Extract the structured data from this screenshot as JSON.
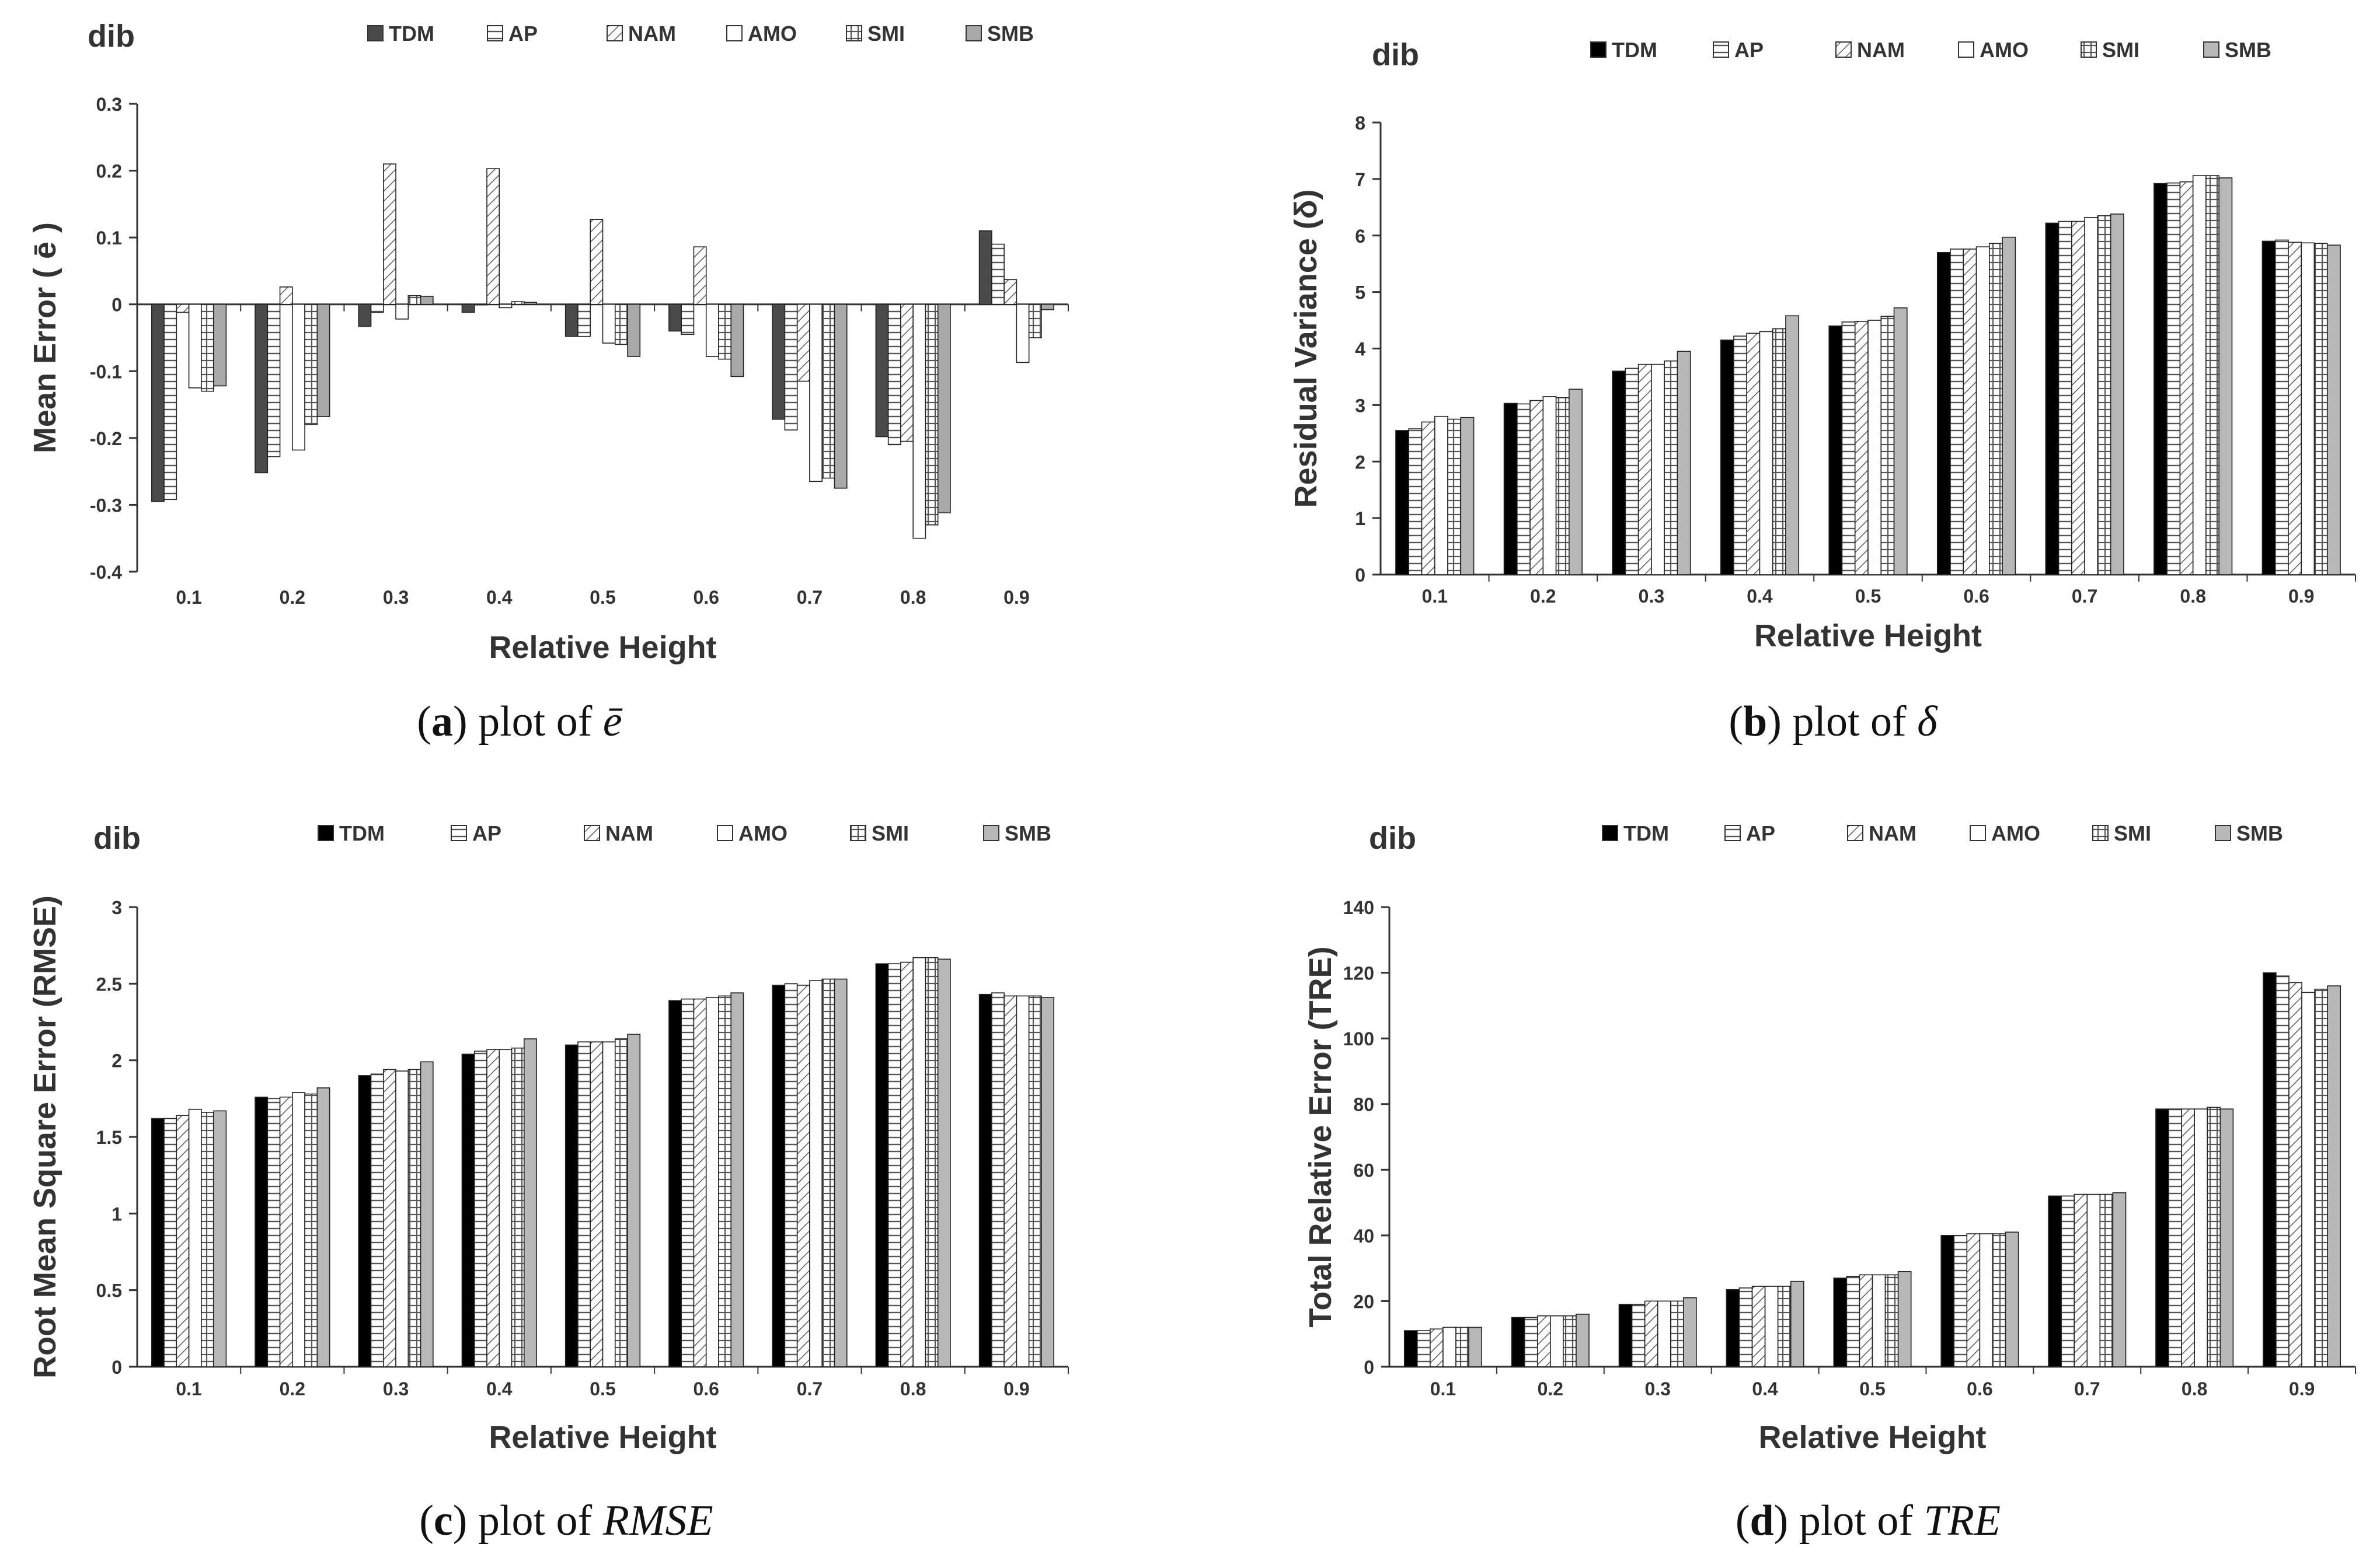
{
  "figure": {
    "panels": [
      {
        "caption_letter": "a",
        "caption_prefix": "plot of",
        "caption_symbol": "ē"
      },
      {
        "caption_letter": "b",
        "caption_prefix": "plot of",
        "caption_symbol": "δ"
      },
      {
        "caption_letter": "c",
        "caption_prefix": "plot of",
        "caption_symbol": "RMSE"
      },
      {
        "caption_letter": "d",
        "caption_prefix": "plot of",
        "caption_symbol": "TRE"
      }
    ]
  },
  "chart_data": [
    {
      "type": "bar",
      "title": "dib",
      "xlabel": "Relative Height",
      "ylabel": "Mean Error ( ē )",
      "ylim": [
        -0.4,
        0.3
      ],
      "yticks": [
        "-0.4",
        "-0.3",
        "-0.2",
        "-0.1",
        "0",
        "0.1",
        "0.2",
        "0.3"
      ],
      "categories": [
        "0.1",
        "0.2",
        "0.3",
        "0.4",
        "0.5",
        "0.6",
        "0.7",
        "0.8",
        "0.9"
      ],
      "series": [
        {
          "name": "TDM",
          "values": [
            -0.295,
            -0.252,
            -0.033,
            -0.012,
            -0.048,
            -0.04,
            -0.172,
            -0.198,
            0.11
          ]
        },
        {
          "name": "AP",
          "values": [
            -0.292,
            -0.228,
            -0.012,
            0.0,
            -0.048,
            -0.045,
            -0.188,
            -0.21,
            0.09
          ]
        },
        {
          "name": "NAM",
          "values": [
            -0.012,
            0.026,
            0.21,
            0.203,
            0.127,
            0.086,
            -0.115,
            -0.205,
            0.037
          ]
        },
        {
          "name": "AMO",
          "values": [
            -0.125,
            -0.218,
            -0.022,
            -0.005,
            -0.058,
            -0.078,
            -0.265,
            -0.35,
            -0.087
          ]
        },
        {
          "name": "SMI",
          "values": [
            -0.13,
            -0.18,
            0.013,
            0.004,
            -0.06,
            -0.082,
            -0.26,
            -0.33,
            -0.05
          ]
        },
        {
          "name": "SMB",
          "values": [
            -0.122,
            -0.168,
            0.012,
            0.003,
            -0.078,
            -0.108,
            -0.275,
            -0.312,
            -0.008
          ]
        }
      ]
    },
    {
      "type": "bar",
      "title": "dib",
      "xlabel": "Relative Height",
      "ylabel": "Residual Variance (δ)",
      "ylim": [
        0,
        8
      ],
      "yticks": [
        "0",
        "1",
        "2",
        "3",
        "4",
        "5",
        "6",
        "7",
        "8"
      ],
      "categories": [
        "0.1",
        "0.2",
        "0.3",
        "0.4",
        "0.5",
        "0.6",
        "0.7",
        "0.8",
        "0.9"
      ],
      "series": [
        {
          "name": "TDM",
          "values": [
            2.55,
            3.03,
            3.6,
            4.15,
            4.4,
            5.7,
            6.22,
            6.92,
            5.9
          ]
        },
        {
          "name": "AP",
          "values": [
            2.58,
            3.02,
            3.65,
            4.22,
            4.47,
            5.76,
            6.25,
            6.93,
            5.92
          ]
        },
        {
          "name": "NAM",
          "values": [
            2.7,
            3.08,
            3.72,
            4.27,
            4.48,
            5.76,
            6.25,
            6.95,
            5.88
          ]
        },
        {
          "name": "AMO",
          "values": [
            2.8,
            3.15,
            3.72,
            4.3,
            4.5,
            5.8,
            6.32,
            7.06,
            5.87
          ]
        },
        {
          "name": "SMI",
          "values": [
            2.75,
            3.13,
            3.78,
            4.35,
            4.57,
            5.86,
            6.35,
            7.06,
            5.86
          ]
        },
        {
          "name": "SMB",
          "values": [
            2.78,
            3.28,
            3.95,
            4.58,
            4.72,
            5.97,
            6.38,
            7.02,
            5.83
          ]
        }
      ]
    },
    {
      "type": "bar",
      "title": "dib",
      "xlabel": "Relative Height",
      "ylabel": "Root Mean Square Error (RMSE)",
      "ylim": [
        0,
        3
      ],
      "yticks": [
        "0",
        "0.5",
        "1",
        "1.5",
        "2",
        "2.5",
        "3"
      ],
      "categories": [
        "0.1",
        "0.2",
        "0.3",
        "0.4",
        "0.5",
        "0.6",
        "0.7",
        "0.8",
        "0.9"
      ],
      "series": [
        {
          "name": "TDM",
          "values": [
            1.62,
            1.76,
            1.9,
            2.04,
            2.1,
            2.39,
            2.49,
            2.63,
            2.43
          ]
        },
        {
          "name": "AP",
          "values": [
            1.62,
            1.75,
            1.91,
            2.06,
            2.12,
            2.4,
            2.5,
            2.63,
            2.44
          ]
        },
        {
          "name": "NAM",
          "values": [
            1.64,
            1.76,
            1.94,
            2.07,
            2.12,
            2.4,
            2.49,
            2.64,
            2.42
          ]
        },
        {
          "name": "AMO",
          "values": [
            1.68,
            1.79,
            1.93,
            2.07,
            2.12,
            2.41,
            2.52,
            2.67,
            2.42
          ]
        },
        {
          "name": "SMI",
          "values": [
            1.66,
            1.78,
            1.94,
            2.08,
            2.14,
            2.42,
            2.53,
            2.67,
            2.42
          ]
        },
        {
          "name": "SMB",
          "values": [
            1.67,
            1.82,
            1.99,
            2.14,
            2.17,
            2.44,
            2.53,
            2.66,
            2.41
          ]
        }
      ]
    },
    {
      "type": "bar",
      "title": "dib",
      "xlabel": "Relative Height",
      "ylabel": "Total Relative Error (TRE)",
      "ylim": [
        0,
        140
      ],
      "yticks": [
        "0",
        "20",
        "40",
        "60",
        "80",
        "100",
        "120",
        "140"
      ],
      "categories": [
        "0.1",
        "0.2",
        "0.3",
        "0.4",
        "0.5",
        "0.6",
        "0.7",
        "0.8",
        "0.9"
      ],
      "series": [
        {
          "name": "TDM",
          "values": [
            11,
            15,
            19,
            23.5,
            27,
            40,
            52,
            78.5,
            120
          ]
        },
        {
          "name": "AP",
          "values": [
            11,
            15,
            19,
            24,
            27.5,
            40,
            52,
            78.5,
            119
          ]
        },
        {
          "name": "NAM",
          "values": [
            11.5,
            15.5,
            20,
            24.5,
            28,
            40.5,
            52.5,
            78.5,
            117
          ]
        },
        {
          "name": "AMO",
          "values": [
            12,
            15.5,
            20,
            24.5,
            28,
            40.5,
            52.5,
            78.5,
            114
          ]
        },
        {
          "name": "SMI",
          "values": [
            12,
            15.5,
            20,
            24.5,
            28,
            40.5,
            52.5,
            79,
            115
          ]
        },
        {
          "name": "SMB",
          "values": [
            12,
            16,
            21,
            26,
            29,
            41,
            53,
            78.5,
            116
          ]
        }
      ]
    }
  ]
}
